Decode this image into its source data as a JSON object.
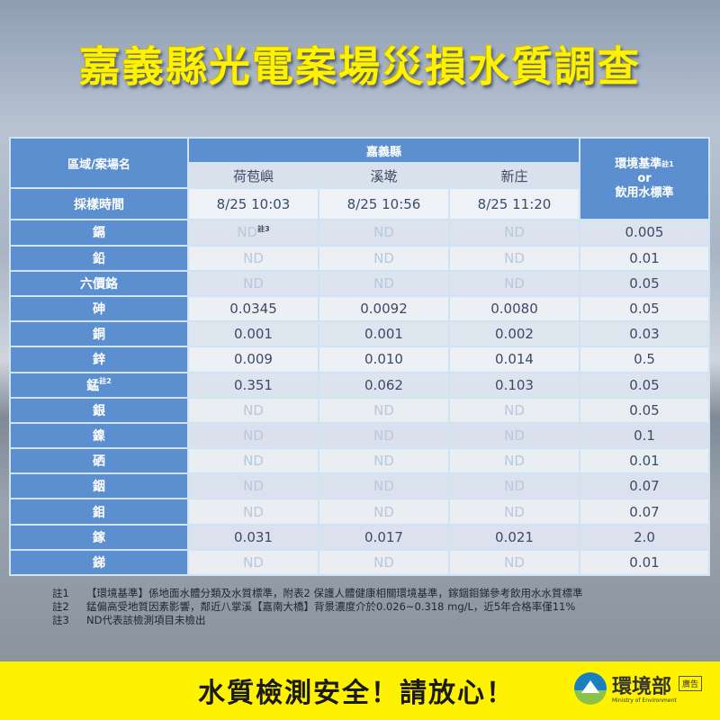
{
  "title": "嘉義縣光電案場災損水質調查",
  "table": {
    "region_label": "區域/案場名",
    "county": "嘉義縣",
    "sites": [
      "荷苞嶼",
      "溪墘",
      "新庄"
    ],
    "standard_header": {
      "line1": "環境基準",
      "note": "註1",
      "line2": "or",
      "line3": "飲用水標準"
    },
    "time_label": "採樣時間",
    "times": [
      "8/25 10:03",
      "8/25 10:56",
      "8/25 11:20"
    ],
    "rows": [
      {
        "name": "鎘",
        "values": [
          "ND",
          "ND",
          "ND"
        ],
        "standard": "0.005",
        "note_on_first": "註3"
      },
      {
        "name": "鉛",
        "values": [
          "ND",
          "ND",
          "ND"
        ],
        "standard": "0.01"
      },
      {
        "name": "六價鉻",
        "values": [
          "ND",
          "ND",
          "ND"
        ],
        "standard": "0.05"
      },
      {
        "name": "砷",
        "values": [
          "0.0345",
          "0.0092",
          "0.0080"
        ],
        "standard": "0.05"
      },
      {
        "name": "銅",
        "values": [
          "0.001",
          "0.001",
          "0.002"
        ],
        "standard": "0.03"
      },
      {
        "name": "鋅",
        "values": [
          "0.009",
          "0.010",
          "0.014"
        ],
        "standard": "0.5"
      },
      {
        "name": "錳",
        "name_note": "註2",
        "values": [
          "0.351",
          "0.062",
          "0.103"
        ],
        "standard": "0.05"
      },
      {
        "name": "銀",
        "values": [
          "ND",
          "ND",
          "ND"
        ],
        "standard": "0.05"
      },
      {
        "name": "鎳",
        "values": [
          "ND",
          "ND",
          "ND"
        ],
        "standard": "0.1"
      },
      {
        "name": "硒",
        "values": [
          "ND",
          "ND",
          "ND"
        ],
        "standard": "0.01"
      },
      {
        "name": "銦",
        "values": [
          "ND",
          "ND",
          "ND"
        ],
        "standard": "0.07"
      },
      {
        "name": "鉬",
        "values": [
          "ND",
          "ND",
          "ND"
        ],
        "standard": "0.07"
      },
      {
        "name": "鎵",
        "values": [
          "0.031",
          "0.017",
          "0.021"
        ],
        "standard": "2.0"
      },
      {
        "name": "銻",
        "values": [
          "ND",
          "ND",
          "ND"
        ],
        "standard": "0.01"
      }
    ]
  },
  "notes": [
    {
      "key": "註1",
      "text": "【環境基準】係地面水體分類及水質標準，附表2 保護人體健康相關環境基準，鎵銦鉬銻參考飲用水水質標準"
    },
    {
      "key": "註2",
      "text": "錳偏高受地質因素影響，鄰近八掌溪【嘉南大橋】背景濃度介於0.026~0.318 mg/L，近5年合格率僅11%"
    },
    {
      "key": "註3",
      "text": "ND代表該檢測項目未檢出"
    }
  ],
  "footer": {
    "slogan": "水質檢測安全！請放心！",
    "org": "環境部",
    "org_en": "Ministry of Environment",
    "ad_label": "廣告"
  },
  "colors": {
    "accent_yellow": "#fff200",
    "table_blue": "#5b8fd0"
  }
}
